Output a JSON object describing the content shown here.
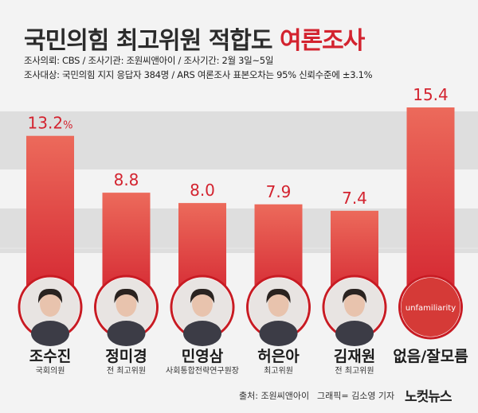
{
  "title": {
    "main": "국민의힘 최고위원 적합도",
    "accent": "여론조사"
  },
  "meta": {
    "line1": "조사의뢰: CBS / 조사기관: 조원씨앤아이 / 조사기간: 2월 3일~5일",
    "line2": "조사대상: 국민의힘 지지 응답자 384명 /  ARS 여론조사 표본오차는 95% 신뢰수준에 ±3.1%"
  },
  "chart_data": {
    "type": "bar",
    "categories": [
      "조수진",
      "정미경",
      "민영삼",
      "허은아",
      "김재원",
      "없음/잘모름"
    ],
    "subtitles": [
      "국회의원",
      "전 최고위원",
      "사회통합전략연구원장",
      "최고위원",
      "전 최고위원",
      ""
    ],
    "values": [
      13.2,
      8.8,
      8.0,
      7.9,
      7.4,
      15.4
    ],
    "value_labels": [
      "13.2%",
      "8.8",
      "8.0",
      "7.9",
      "7.4",
      "15.4"
    ],
    "ylim": [
      0,
      15.4
    ],
    "bar_color": "#d3232f",
    "bar_gradient_top": "#ec6a5b",
    "band_color": "#dedede",
    "placeholder_text": "unfamiliarity"
  },
  "footer": {
    "source": "출처:  조원씨앤아이",
    "graphic": "그래픽= 김소영 기자",
    "logo": "노컷뉴스"
  }
}
